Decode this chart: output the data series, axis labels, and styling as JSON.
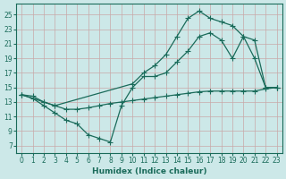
{
  "xlabel": "Humidex (Indice chaleur)",
  "bg_color": "#cce8e8",
  "line_color": "#1a6b5a",
  "grid_color": "#b0d0d0",
  "xlim": [
    -0.5,
    23.5
  ],
  "ylim": [
    6,
    26.5
  ],
  "yticks": [
    7,
    9,
    11,
    13,
    15,
    17,
    19,
    21,
    23,
    25
  ],
  "xticks": [
    0,
    1,
    2,
    3,
    4,
    5,
    6,
    7,
    8,
    9,
    10,
    11,
    12,
    13,
    14,
    15,
    16,
    17,
    18,
    19,
    20,
    21,
    22,
    23
  ],
  "line1_x": [
    0,
    1,
    2,
    3,
    4,
    5,
    6,
    7,
    8,
    9,
    10,
    11,
    12,
    13,
    14,
    15,
    16,
    17,
    18,
    19,
    20,
    21,
    22,
    23
  ],
  "line1_y": [
    14.0,
    13.8,
    13.0,
    12.5,
    12.0,
    12.0,
    12.2,
    12.5,
    12.8,
    13.0,
    13.2,
    13.4,
    13.6,
    13.8,
    14.0,
    14.2,
    14.4,
    14.5,
    14.5,
    14.5,
    14.5,
    14.5,
    14.8,
    15.0
  ],
  "line2_x": [
    0,
    1,
    2,
    3,
    4,
    5,
    6,
    7,
    8,
    9,
    10,
    11,
    12,
    13,
    14,
    15,
    16,
    17,
    18,
    19,
    20,
    21,
    22,
    23
  ],
  "line2_y": [
    14.0,
    13.5,
    12.5,
    11.5,
    10.5,
    10.0,
    8.5,
    8.0,
    7.5,
    12.5,
    15.0,
    16.5,
    16.5,
    17.0,
    18.5,
    20.0,
    22.0,
    22.5,
    21.5,
    19.0,
    22.0,
    21.5,
    15.0,
    15.0
  ],
  "line3_x": [
    0,
    2,
    3,
    10,
    11,
    12,
    13,
    14,
    15,
    16,
    17,
    18,
    19,
    20,
    21,
    22,
    23
  ],
  "line3_y": [
    14.0,
    13.0,
    12.5,
    15.5,
    17.0,
    18.0,
    19.5,
    22.0,
    24.5,
    25.5,
    24.5,
    24.0,
    23.5,
    22.0,
    19.0,
    15.0,
    15.0
  ]
}
